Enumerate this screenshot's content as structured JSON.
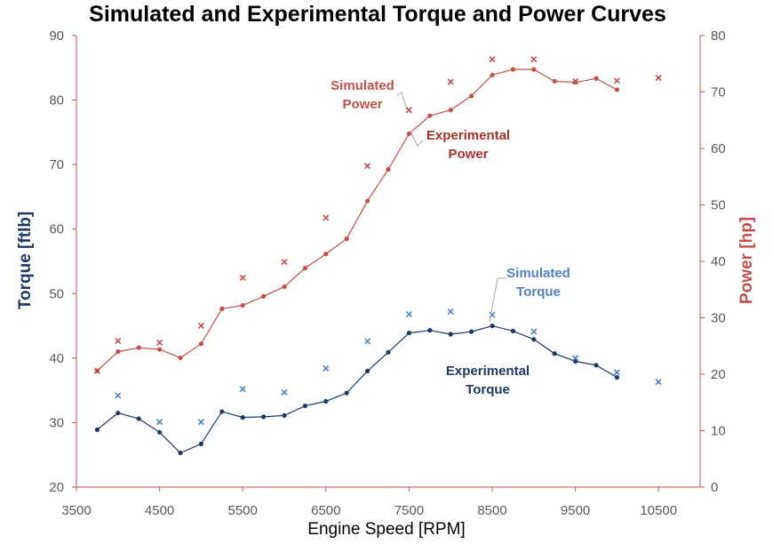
{
  "chart_data": {
    "type": "line",
    "title": "Simulated and Experimental Torque and Power Curves",
    "xlabel": "Engine Speed [RPM]",
    "ylabel_left": "Torque [ftlb]",
    "ylabel_right": "Power [hp]",
    "xlim": [
      3500,
      11000
    ],
    "ylim_left": [
      20,
      90
    ],
    "ylim_right": [
      0,
      80
    ],
    "xticks": [
      "3500",
      "4500",
      "5500",
      "6500",
      "7500",
      "8500",
      "9500",
      "10500"
    ],
    "yticks_left": [
      "20",
      "30",
      "40",
      "50",
      "60",
      "70",
      "80",
      "90"
    ],
    "yticks_right": [
      "0",
      "10",
      "20",
      "30",
      "40",
      "50",
      "60",
      "70",
      "80"
    ],
    "grid": false,
    "colors": {
      "torque_line": "#1f3864",
      "torque_sim": "#4f81bd",
      "power_line": "#c0504d",
      "power_sim": "#c0504d",
      "axis_left": "#c0504d",
      "axis_right": "#c0504d",
      "axis_bottom": "#c0504d"
    },
    "series": [
      {
        "name": "Experimental Torque",
        "axis": "left",
        "style": "line-dot",
        "x": [
          3750,
          4000,
          4250,
          4500,
          4750,
          5000,
          5250,
          5500,
          5750,
          6000,
          6250,
          6500,
          6750,
          7000,
          7250,
          7500,
          7750,
          8000,
          8250,
          8500,
          8750,
          9000,
          9250,
          9500,
          9750,
          10000
        ],
        "y": [
          28.9,
          31.5,
          30.6,
          28.5,
          25.3,
          26.7,
          31.7,
          30.8,
          30.9,
          31.1,
          32.6,
          33.3,
          34.6,
          38.0,
          40.9,
          43.9,
          44.3,
          43.7,
          44.1,
          45.0,
          44.2,
          42.9,
          40.7,
          39.5,
          38.9,
          37.0
        ]
      },
      {
        "name": "Simulated Torque",
        "axis": "left",
        "style": "cross",
        "x": [
          4000,
          4500,
          5000,
          5500,
          6000,
          6500,
          7000,
          7500,
          8000,
          8500,
          9000,
          9500,
          10000,
          10500
        ],
        "y": [
          34.2,
          30.1,
          30.1,
          35.2,
          34.7,
          38.4,
          42.6,
          46.8,
          47.2,
          46.7,
          44.1,
          40.0,
          37.8,
          36.3
        ]
      },
      {
        "name": "Experimental Power",
        "axis": "right",
        "style": "line-dot",
        "x": [
          3750,
          4000,
          4250,
          4500,
          4750,
          5000,
          5250,
          5500,
          5750,
          6000,
          6250,
          6500,
          6750,
          7000,
          7250,
          7500,
          7750,
          8000,
          8250,
          8500,
          8750,
          9000,
          9250,
          9500,
          9750,
          10000
        ],
        "y": [
          20.6,
          24.0,
          24.7,
          24.4,
          22.9,
          25.4,
          31.6,
          32.2,
          33.8,
          35.5,
          38.8,
          41.3,
          44.0,
          50.7,
          56.3,
          62.6,
          65.8,
          66.8,
          69.3,
          73.0,
          74.0,
          74.0,
          71.9,
          71.7,
          72.4,
          70.4
        ]
      },
      {
        "name": "Simulated Power",
        "axis": "right",
        "style": "cross",
        "x": [
          3750,
          4000,
          4500,
          5000,
          5500,
          6000,
          6500,
          7000,
          7500,
          8000,
          8500,
          9000,
          9500,
          10000,
          10500
        ],
        "y": [
          20.6,
          25.9,
          25.6,
          28.6,
          37.1,
          39.9,
          47.7,
          56.9,
          66.8,
          71.8,
          75.8,
          75.8,
          71.9,
          72.0,
          72.5
        ]
      }
    ],
    "annotations": [
      {
        "text_lines": [
          "Simulated",
          "Power"
        ],
        "color": "#c0504d",
        "series": "Simulated Power"
      },
      {
        "text_lines": [
          "Experimental",
          "Power"
        ],
        "color": "#a5302e",
        "series": "Experimental Power"
      },
      {
        "text_lines": [
          "Simulated",
          "Torque"
        ],
        "color": "#4f81bd",
        "series": "Simulated Torque"
      },
      {
        "text_lines": [
          "Experimental",
          "Torque"
        ],
        "color": "#1f3864",
        "series": "Experimental Torque"
      }
    ]
  }
}
